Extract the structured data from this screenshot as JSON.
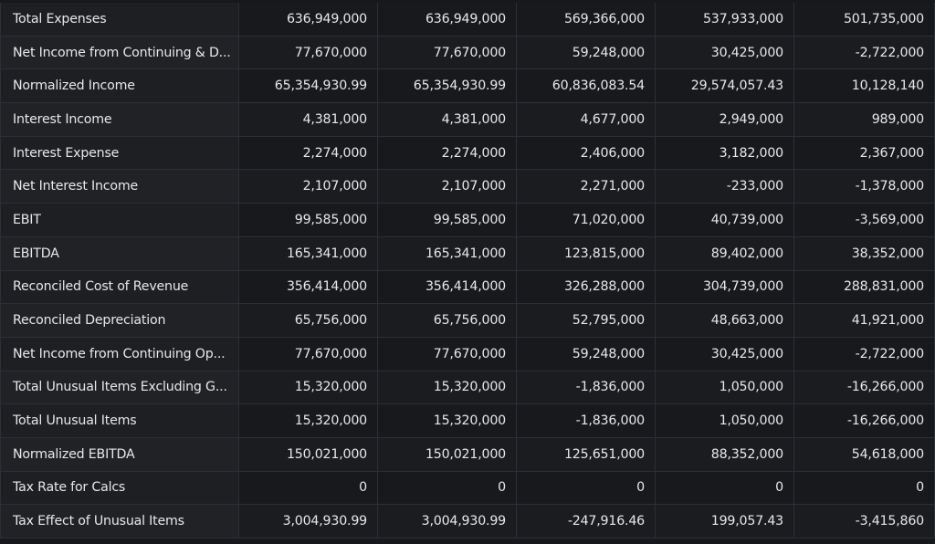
{
  "table": {
    "rows": [
      {
        "label": "Total Expenses",
        "values": [
          "636,949,000",
          "636,949,000",
          "569,366,000",
          "537,933,000",
          "501,735,000"
        ]
      },
      {
        "label": "Net Income from Continuing & D...",
        "values": [
          "77,670,000",
          "77,670,000",
          "59,248,000",
          "30,425,000",
          "-2,722,000"
        ]
      },
      {
        "label": "Normalized Income",
        "values": [
          "65,354,930.99",
          "65,354,930.99",
          "60,836,083.54",
          "29,574,057.43",
          "10,128,140"
        ]
      },
      {
        "label": "Interest Income",
        "values": [
          "4,381,000",
          "4,381,000",
          "4,677,000",
          "2,949,000",
          "989,000"
        ]
      },
      {
        "label": "Interest Expense",
        "values": [
          "2,274,000",
          "2,274,000",
          "2,406,000",
          "3,182,000",
          "2,367,000"
        ]
      },
      {
        "label": "Net Interest Income",
        "values": [
          "2,107,000",
          "2,107,000",
          "2,271,000",
          "-233,000",
          "-1,378,000"
        ]
      },
      {
        "label": "EBIT",
        "values": [
          "99,585,000",
          "99,585,000",
          "71,020,000",
          "40,739,000",
          "-3,569,000"
        ]
      },
      {
        "label": "EBITDA",
        "values": [
          "165,341,000",
          "165,341,000",
          "123,815,000",
          "89,402,000",
          "38,352,000"
        ]
      },
      {
        "label": "Reconciled Cost of Revenue",
        "values": [
          "356,414,000",
          "356,414,000",
          "326,288,000",
          "304,739,000",
          "288,831,000"
        ]
      },
      {
        "label": "Reconciled Depreciation",
        "values": [
          "65,756,000",
          "65,756,000",
          "52,795,000",
          "48,663,000",
          "41,921,000"
        ]
      },
      {
        "label": "Net Income from Continuing Op...",
        "values": [
          "77,670,000",
          "77,670,000",
          "59,248,000",
          "30,425,000",
          "-2,722,000"
        ]
      },
      {
        "label": "Total Unusual Items Excluding G...",
        "values": [
          "15,320,000",
          "15,320,000",
          "-1,836,000",
          "1,050,000",
          "-16,266,000"
        ]
      },
      {
        "label": "Total Unusual Items",
        "values": [
          "15,320,000",
          "15,320,000",
          "-1,836,000",
          "1,050,000",
          "-16,266,000"
        ]
      },
      {
        "label": "Normalized EBITDA",
        "values": [
          "150,021,000",
          "150,021,000",
          "125,651,000",
          "88,352,000",
          "54,618,000"
        ]
      },
      {
        "label": "Tax Rate for Calcs",
        "values": [
          "0",
          "0",
          "0",
          "0",
          "0"
        ]
      },
      {
        "label": "Tax Effect of Unusual Items",
        "values": [
          "3,004,930.99",
          "3,004,930.99",
          "-247,916.46",
          "199,057.43",
          "-3,415,860"
        ]
      }
    ]
  }
}
